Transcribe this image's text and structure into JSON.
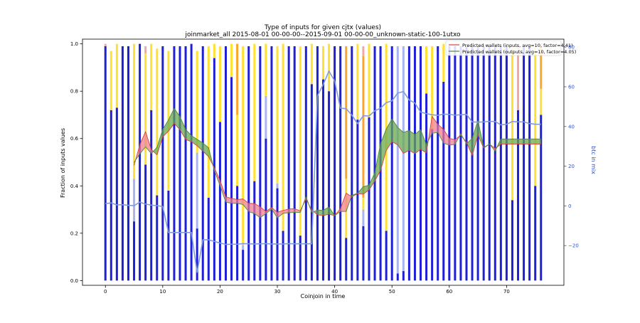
{
  "chart_data": {
    "type": "bar",
    "title": "Type of inputs for given cjtx (values)",
    "subtitle": "joinmarket_all 2015-08-01 00-00-00--2015-09-01 00-00-00_unknown-static-100-1utxo",
    "xlabel": "Coinjoin in time",
    "ylabel": "Fraction of inputs values",
    "y2label": "btc in mix",
    "xlim": [
      -4,
      80
    ],
    "ylim": [
      -0.02,
      1.02
    ],
    "y2lim": [
      -40,
      84
    ],
    "x_ticks": [
      0,
      10,
      20,
      30,
      40,
      50,
      60,
      70
    ],
    "y_ticks": [
      0.0,
      0.2,
      0.4,
      0.6,
      0.8,
      1.0
    ],
    "y2_ticks": [
      -20,
      0,
      20,
      40,
      60,
      80
    ],
    "legend_position": "top-right",
    "colors": {
      "blue": "#1f1fd6",
      "light_blue": "#aab4f0",
      "yellow": "#ffe033",
      "orange": "#ffa42a",
      "pink": "#f4a6a6",
      "line_red": "#d94040",
      "line_green": "#4a8a3a",
      "fill_red": "#f08090",
      "fill_green": "#6aa84f",
      "btc_line": "#7f9be0",
      "axis_right": "#3050d0"
    },
    "bar_stack_order": [
      "blue",
      "light_blue",
      "yellow",
      "orange",
      "pink"
    ],
    "bar_segments": [
      [
        0.99,
        0.0,
        0.0,
        0.0,
        0.01
      ],
      [
        0.72,
        0.0,
        0.25,
        0.0,
        0.0
      ],
      [
        0.73,
        0.0,
        0.27,
        0.0,
        0.0
      ],
      [
        0.99,
        0.0,
        0.0,
        0.0,
        0.0
      ],
      [
        0.99,
        0.0,
        0.0,
        0.0,
        0.0
      ],
      [
        0.25,
        0.18,
        0.57,
        0.0,
        0.0
      ],
      [
        1.0,
        0.0,
        0.0,
        0.0,
        0.0
      ],
      [
        0.49,
        0.0,
        0.47,
        0.0,
        0.03
      ],
      [
        0.72,
        0.0,
        0.28,
        0.0,
        0.0
      ],
      [
        0.36,
        0.0,
        0.62,
        0.0,
        0.0
      ],
      [
        0.99,
        0.0,
        0.0,
        0.0,
        0.0
      ],
      [
        0.38,
        0.0,
        0.59,
        0.0,
        0.0
      ],
      [
        0.99,
        0.0,
        0.0,
        0.0,
        0.0
      ],
      [
        0.99,
        0.0,
        0.0,
        0.0,
        0.0
      ],
      [
        0.99,
        0.0,
        0.0,
        0.0,
        0.0
      ],
      [
        1.0,
        0.0,
        0.0,
        0.0,
        0.0
      ],
      [
        0.22,
        0.32,
        0.43,
        0.0,
        0.0
      ],
      [
        0.99,
        0.0,
        0.0,
        0.0,
        0.0
      ],
      [
        0.35,
        0.0,
        0.64,
        0.0,
        0.0
      ],
      [
        0.94,
        0.0,
        0.06,
        0.0,
        0.0
      ],
      [
        0.67,
        0.0,
        0.32,
        0.0,
        0.0
      ],
      [
        0.99,
        0.0,
        0.0,
        0.0,
        0.0
      ],
      [
        0.86,
        0.0,
        0.14,
        0.0,
        0.0
      ],
      [
        0.4,
        0.0,
        0.3,
        0.3,
        0.0
      ],
      [
        0.13,
        0.02,
        0.84,
        0.0,
        0.0
      ],
      [
        0.99,
        0.0,
        0.0,
        0.0,
        0.0
      ],
      [
        0.42,
        0.0,
        0.58,
        0.0,
        0.0
      ],
      [
        0.99,
        0.0,
        0.0,
        0.0,
        0.0
      ],
      [
        0.6,
        0.18,
        0.22,
        0.0,
        0.0
      ],
      [
        0.99,
        0.0,
        0.0,
        0.0,
        0.0
      ],
      [
        0.39,
        0.02,
        0.58,
        0.0,
        0.0
      ],
      [
        0.21,
        0.0,
        0.79,
        0.0,
        0.0
      ],
      [
        0.99,
        0.0,
        0.0,
        0.0,
        0.0
      ],
      [
        0.99,
        0.0,
        0.0,
        0.0,
        0.0
      ],
      [
        0.19,
        0.0,
        0.8,
        0.0,
        0.0
      ],
      [
        0.99,
        0.0,
        0.0,
        0.0,
        0.0
      ],
      [
        0.83,
        0.0,
        0.17,
        0.0,
        0.0
      ],
      [
        0.99,
        0.0,
        0.0,
        0.0,
        0.0
      ],
      [
        0.85,
        0.0,
        0.14,
        0.0,
        0.0
      ],
      [
        0.8,
        0.0,
        0.2,
        0.0,
        0.0
      ],
      [
        0.99,
        0.0,
        0.0,
        0.0,
        0.0
      ],
      [
        0.99,
        0.0,
        0.0,
        0.0,
        0.0
      ],
      [
        0.18,
        0.0,
        0.25,
        0.56,
        0.0
      ],
      [
        0.99,
        0.0,
        0.0,
        0.0,
        0.0
      ],
      [
        0.68,
        0.0,
        0.32,
        0.0,
        0.0
      ],
      [
        0.23,
        0.07,
        0.05,
        0.6,
        0.04
      ],
      [
        0.69,
        0.0,
        0.31,
        0.0,
        0.0
      ],
      [
        0.99,
        0.0,
        0.0,
        0.0,
        0.0
      ],
      [
        0.99,
        0.0,
        0.0,
        0.0,
        0.0
      ],
      [
        0.21,
        0.0,
        0.79,
        0.0,
        0.0
      ],
      [
        0.99,
        0.0,
        0.0,
        0.0,
        0.0
      ],
      [
        0.03,
        0.96,
        0.0,
        0.0,
        0.0
      ],
      [
        0.04,
        0.95,
        0.0,
        0.0,
        0.0
      ],
      [
        0.99,
        0.0,
        0.0,
        0.0,
        0.0
      ],
      [
        0.99,
        0.0,
        0.0,
        0.0,
        0.0
      ],
      [
        0.99,
        0.0,
        0.0,
        0.0,
        0.0
      ],
      [
        0.79,
        0.0,
        0.2,
        0.0,
        0.0
      ],
      [
        0.64,
        0.0,
        0.35,
        0.0,
        0.0
      ],
      [
        0.99,
        0.0,
        0.0,
        0.0,
        0.0
      ],
      [
        0.84,
        0.0,
        0.16,
        0.0,
        0.0
      ],
      [
        0.99,
        0.0,
        0.0,
        0.0,
        0.0
      ],
      [
        0.99,
        0.0,
        0.0,
        0.0,
        0.0
      ],
      [
        0.99,
        0.0,
        0.0,
        0.0,
        0.0
      ],
      [
        0.99,
        0.0,
        0.0,
        0.0,
        0.0
      ],
      [
        0.99,
        0.0,
        0.0,
        0.0,
        0.0
      ],
      [
        0.99,
        0.0,
        0.0,
        0.0,
        0.0
      ],
      [
        0.99,
        0.0,
        0.0,
        0.0,
        0.0
      ],
      [
        0.99,
        0.0,
        0.0,
        0.0,
        0.0
      ],
      [
        0.99,
        0.0,
        0.0,
        0.0,
        0.0
      ],
      [
        0.99,
        0.0,
        0.0,
        0.0,
        0.0
      ],
      [
        0.99,
        0.0,
        0.0,
        0.0,
        0.0
      ],
      [
        0.34,
        0.0,
        0.65,
        0.0,
        0.0
      ],
      [
        0.72,
        0.0,
        0.0,
        0.0,
        0.27
      ],
      [
        0.99,
        0.0,
        0.0,
        0.0,
        0.0
      ],
      [
        0.99,
        0.0,
        0.0,
        0.0,
        0.0
      ],
      [
        0.4,
        0.0,
        0.59,
        0.0,
        0.0
      ],
      [
        0.7,
        0.0,
        0.11,
        0.19,
        0.0
      ]
    ],
    "series": [
      {
        "name": "Predicted wallets (inputs, avg=10, factor=4.41)",
        "axis": "right",
        "values": [
          null,
          null,
          null,
          null,
          null,
          20.4,
          30.8,
          37.4,
          28.4,
          25.7,
          34.8,
          37.6,
          41.6,
          38.4,
          33.5,
          32.3,
          30.3,
          27.6,
          24.8,
          19.2,
          12.8,
          4.6,
          3.8,
          3.2,
          3.5,
          1.3,
          1.2,
          -0.5,
          -2.8,
          -0.8,
          -3.2,
          -2.3,
          -1.6,
          -1.4,
          -2.5,
          3.5,
          -2.1,
          -4.5,
          -4.9,
          -4.2,
          -4.9,
          -1.4,
          6.4,
          4.6,
          6.2,
          5.9,
          8.1,
          12.5,
          17.9,
          27.9,
          32.3,
          30.8,
          26.5,
          28.0,
          26.3,
          28.5,
          26.7,
          45.1,
          41.1,
          38.5,
          34.0,
          33.4,
          35.6,
          32.1,
          25.4,
          35.8,
          29.1,
          31.2,
          28.9,
          31.1,
          31.1,
          31.1,
          31.1,
          31.1,
          31.1,
          31.1,
          31.1
        ]
      },
      {
        "name": "Predicted wallets (outputs, avg=10, factor=4.05)",
        "axis": "right",
        "values": [
          null,
          null,
          null,
          null,
          null,
          22.0,
          26.2,
          29.7,
          26.4,
          29.5,
          38.5,
          43.3,
          49.1,
          45.0,
          38.5,
          35.4,
          33.5,
          31.7,
          29.3,
          17.9,
          10.2,
          1.9,
          1.3,
          1.3,
          0.7,
          -2.8,
          -3.9,
          -5.9,
          -3.9,
          -1.6,
          -6.0,
          -3.8,
          -3.4,
          -3.3,
          -3.3,
          4.6,
          -3.3,
          -2.1,
          -2.2,
          -0.6,
          -4.9,
          -2.8,
          -2.8,
          5.3,
          6.4,
          9.7,
          10.4,
          16.7,
          31.3,
          38.7,
          43.8,
          39.5,
          37.0,
          38.0,
          36.0,
          38.4,
          30.8,
          36.6,
          37.0,
          31.6,
          30.6,
          31.0,
          36.4,
          31.3,
          34.0,
          43.0,
          29.4,
          31.2,
          27.6,
          33.7,
          33.7,
          33.7,
          33.7,
          33.7,
          33.7,
          33.7,
          33.7
        ]
      },
      {
        "name": "",
        "axis": "right",
        "values": [
          1.1,
          1.5,
          0.5,
          0.6,
          0.3,
          0.1,
          1.9,
          0.9,
          0.4,
          0.1,
          -0.3,
          -13.4,
          -13.4,
          -13.4,
          -13.4,
          -13.4,
          -33.5,
          -17.1,
          -17.1,
          -17.9,
          -18.7,
          -19.4,
          -19.3,
          -19.3,
          -19.0,
          -19.1,
          -19.2,
          -19.1,
          -19.0,
          -19.2,
          -19.2,
          -19.2,
          -19.0,
          -19.1,
          -19.1,
          -19.1,
          -19.1,
          55.5,
          61.1,
          67.9,
          63.0,
          49.2,
          49.0,
          45.7,
          41.4,
          45.4,
          45.3,
          47.9,
          49.2,
          52.0,
          52.9,
          56.8,
          57.6,
          53.4,
          51.8,
          47.2,
          46.5,
          45.9,
          45.6,
          46.2,
          46.1,
          45.7,
          45.9,
          46.1,
          42.3,
          42.2,
          42.3,
          42.6,
          42.5,
          40.8,
          41.1,
          42.5,
          42.3,
          42.3,
          41.5,
          41.1,
          41.1
        ]
      }
    ]
  }
}
